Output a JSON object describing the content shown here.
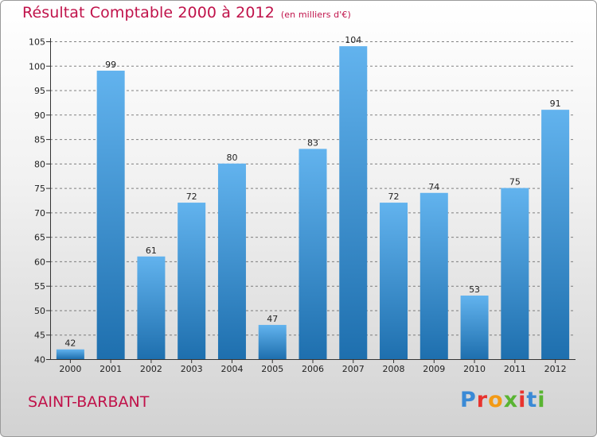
{
  "title": "Résultat Comptable 2000 à 2012",
  "unit_note": "(en milliers d'€)",
  "commune": "SAINT-BARBANT",
  "logo": {
    "text": "Proxiti",
    "letter_colors": [
      "#3a8ad6",
      "#e8332e",
      "#f39a15",
      "#59b432",
      "#e8332e",
      "#3a8ad6",
      "#59b432"
    ]
  },
  "colors": {
    "bar_top": "#62b3ee",
    "bar_bottom": "#1e6fae",
    "title": "#c0124a",
    "grid": "#5a5a5a"
  },
  "chart_data": {
    "type": "bar",
    "title": "Résultat Comptable 2000 à 2012",
    "subtitle": "(en milliers d'€)",
    "categories": [
      "2000",
      "2001",
      "2002",
      "2003",
      "2004",
      "2005",
      "2006",
      "2007",
      "2008",
      "2009",
      "2010",
      "2011",
      "2012"
    ],
    "values": [
      42,
      99,
      61,
      72,
      80,
      47,
      83,
      104,
      72,
      74,
      53,
      75,
      91
    ],
    "ylim": [
      40,
      105
    ],
    "yticks": [
      40,
      45,
      50,
      55,
      60,
      65,
      70,
      75,
      80,
      85,
      90,
      95,
      100,
      105
    ],
    "xlabel": "",
    "ylabel": "",
    "grid": "horizontal dashed"
  }
}
